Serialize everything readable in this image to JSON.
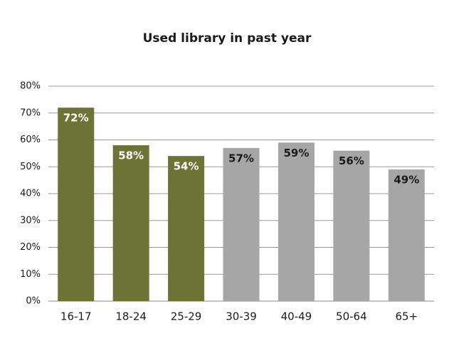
{
  "chart_data": {
    "type": "bar",
    "title": "Used library in past year",
    "categories": [
      "16-17",
      "18-24",
      "25-29",
      "30-39",
      "40-49",
      "50-64",
      "65+"
    ],
    "values": [
      72,
      58,
      54,
      57,
      59,
      56,
      49
    ],
    "value_labels": [
      "72%",
      "58%",
      "54%",
      "57%",
      "59%",
      "56%",
      "49%"
    ],
    "colors": [
      "#6b7335",
      "#6b7335",
      "#6b7335",
      "#a6a6a6",
      "#a6a6a6",
      "#a6a6a6",
      "#a6a6a6"
    ],
    "ylim": [
      0,
      80
    ],
    "yticks": [
      {
        "value": 0,
        "label": "0%"
      },
      {
        "value": 10,
        "label": "10%"
      },
      {
        "value": 20,
        "label": "20%"
      },
      {
        "value": 30,
        "label": "30%"
      },
      {
        "value": 40,
        "label": "40%"
      },
      {
        "value": 50,
        "label": "50%"
      },
      {
        "value": 60,
        "label": "60%"
      },
      {
        "value": 70,
        "label": "70%"
      },
      {
        "value": 80,
        "label": "80%"
      }
    ],
    "grid": true
  }
}
